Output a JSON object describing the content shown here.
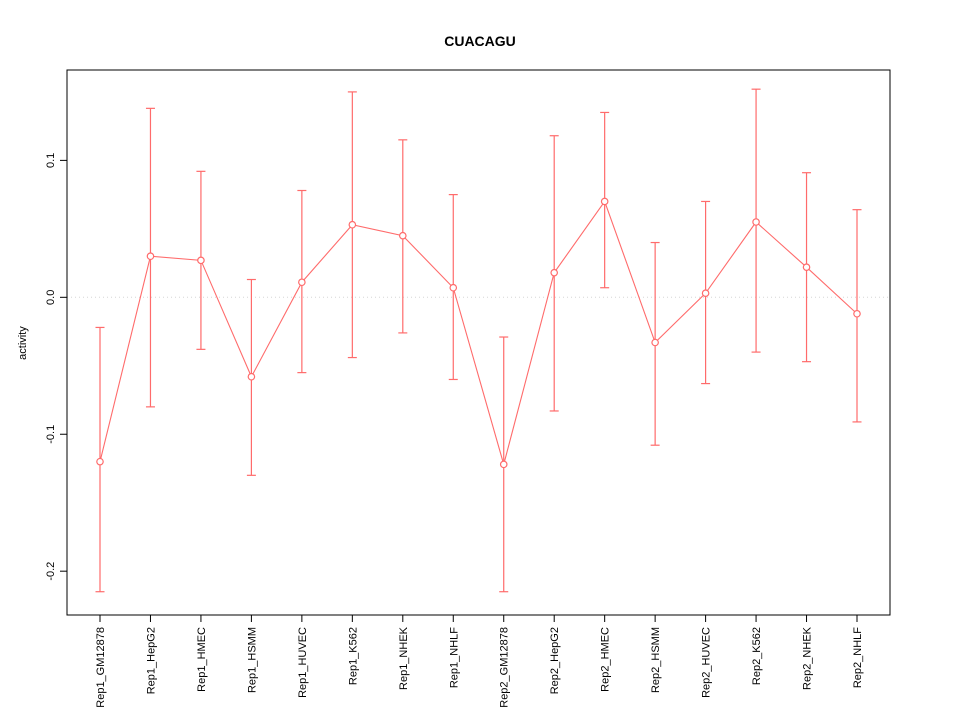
{
  "chart_data": {
    "type": "line",
    "title": "CUACAGU",
    "xlabel": "",
    "ylabel": "activity",
    "legend_position": "none",
    "point_style": "open-circle",
    "error_bars": true,
    "series_color": "#ff6b6b",
    "zero_line": {
      "show": true,
      "style": "dotted",
      "color": "#d6d6d6",
      "y": 0
    },
    "ylim": [
      -0.232,
      0.166
    ],
    "yticks": [
      -0.2,
      -0.1,
      0.0,
      0.1
    ],
    "ytick_labels": [
      "-0.2",
      "-0.1",
      "0.0",
      "0.1"
    ],
    "categories": [
      "Rep1_GM12878",
      "Rep1_HepG2",
      "Rep1_HMEC",
      "Rep1_HSMM",
      "Rep1_HUVEC",
      "Rep1_K562",
      "Rep1_NHEK",
      "Rep1_NHLF",
      "Rep2_GM12878",
      "Rep2_HepG2",
      "Rep2_HMEC",
      "Rep2_HSMM",
      "Rep2_HUVEC",
      "Rep2_K562",
      "Rep2_NHEK",
      "Rep2_NHLF"
    ],
    "series": [
      {
        "name": "activity",
        "means": [
          -0.12,
          0.03,
          0.027,
          -0.058,
          0.011,
          0.053,
          0.045,
          0.007,
          -0.122,
          0.018,
          0.07,
          -0.033,
          0.003,
          0.055,
          0.022,
          -0.012
        ],
        "upper": [
          -0.022,
          0.138,
          0.092,
          0.013,
          0.078,
          0.15,
          0.115,
          0.075,
          -0.029,
          0.118,
          0.135,
          0.04,
          0.07,
          0.152,
          0.091,
          0.064
        ],
        "lower": [
          -0.215,
          -0.08,
          -0.038,
          -0.13,
          -0.055,
          -0.044,
          -0.026,
          -0.06,
          -0.215,
          -0.083,
          0.007,
          -0.108,
          -0.063,
          -0.04,
          -0.047,
          -0.091
        ]
      }
    ]
  }
}
